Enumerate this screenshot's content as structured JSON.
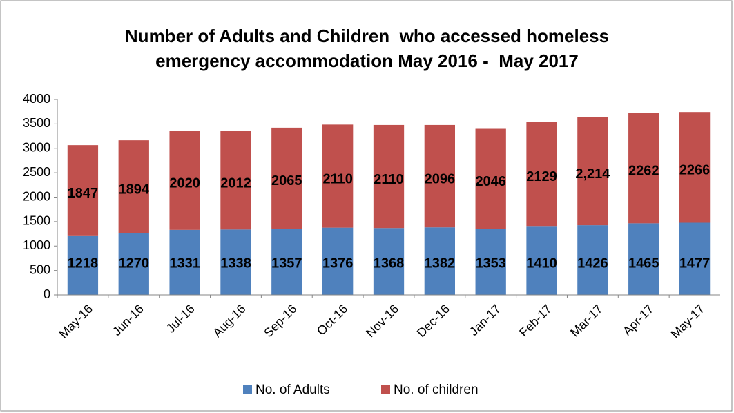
{
  "chart_data": {
    "type": "stacked_bar",
    "title": "Number of Adults and Children  who accessed homeless emergency accommodation May 2016 -  May 2017",
    "categories": [
      "May-16",
      "Jun-16",
      "Jul-16",
      "Aug-16",
      "Sep-16",
      "Oct-16",
      "Nov-16",
      "Dec-16",
      "Jan-17",
      "Feb-17",
      "Mar-17",
      "Apr-17",
      "May-17"
    ],
    "series": [
      {
        "name": "No. of Adults",
        "color": "#4f81bd",
        "values": [
          1218,
          1270,
          1331,
          1338,
          1357,
          1376,
          1368,
          1382,
          1353,
          1410,
          1426,
          1465,
          1477
        ]
      },
      {
        "name": "No. of children",
        "color": "#c0504d",
        "values": [
          1847,
          1894,
          2020,
          2012,
          2065,
          2110,
          2110,
          2096,
          2046,
          2129,
          2214,
          2262,
          2266
        ],
        "value_labels": [
          "1847",
          "1894",
          "2020",
          "2012",
          "2065",
          "2110",
          "2110",
          "2096",
          "2046",
          "2129",
          "2,214",
          "2262",
          "2266"
        ]
      }
    ],
    "ylim": [
      0,
      4000
    ],
    "yticks": [
      0,
      500,
      1000,
      1500,
      2000,
      2500,
      3000,
      3500,
      4000
    ],
    "grid": false,
    "legend": "bottom"
  }
}
